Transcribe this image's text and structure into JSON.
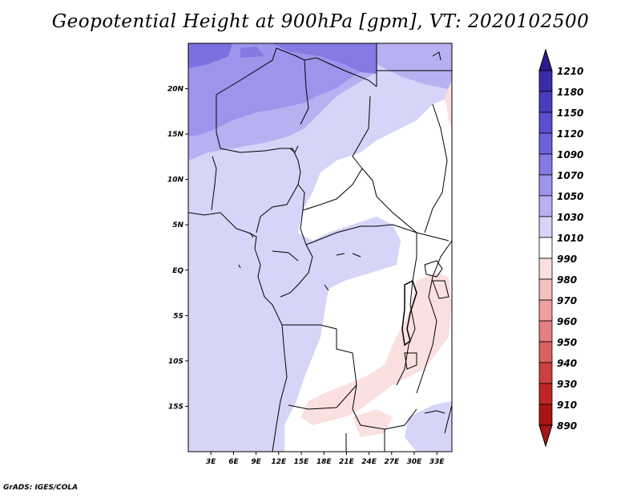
{
  "title": "Geopotential Height at 900hPa [gpm], VT: 2020102500",
  "credit": "GrADS: IGES/COLA",
  "map": {
    "lat_labels": [
      "20N",
      "15N",
      "10N",
      "5N",
      "EQ",
      "5S",
      "10S",
      "15S"
    ],
    "lat_values": [
      20,
      15,
      10,
      5,
      0,
      -5,
      -10,
      -15
    ],
    "lon_labels": [
      "3E",
      "6E",
      "9E",
      "12E",
      "15E",
      "18E",
      "21E",
      "24E",
      "27E",
      "30E",
      "33E"
    ],
    "lon_values": [
      3,
      6,
      9,
      12,
      15,
      18,
      21,
      24,
      27,
      30,
      33
    ],
    "lon_range": [
      0,
      35
    ],
    "lat_range": [
      -20,
      25
    ]
  },
  "colorbar": {
    "labels": [
      "1210",
      "1180",
      "1150",
      "1120",
      "1090",
      "1070",
      "1050",
      "1030",
      "1010",
      "990",
      "980",
      "970",
      "960",
      "950",
      "940",
      "930",
      "910",
      "890"
    ],
    "colors": [
      "#2a1c8f",
      "#3a2ca8",
      "#4a3cbe",
      "#5b4ed0",
      "#6e62dc",
      "#857ae4",
      "#9d94ec",
      "#b7b1f2",
      "#d6d4f8",
      "#ffffff",
      "#fbe0e0",
      "#f5c0c0",
      "#eda0a0",
      "#e48080",
      "#da6060",
      "#ce4040",
      "#bf2525",
      "#a81515"
    ]
  }
}
